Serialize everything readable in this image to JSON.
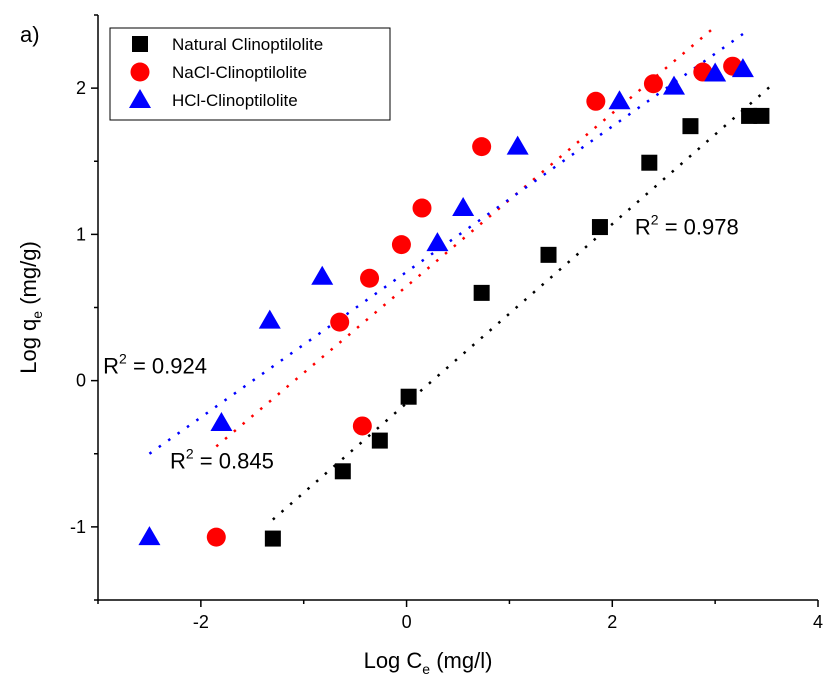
{
  "chart_data": {
    "type": "scatter",
    "panel_label": "a)",
    "xlabel": {
      "main": "Log C",
      "sub": "e",
      "unit": " (mg/l)"
    },
    "ylabel": {
      "main": "Log q",
      "sub": "e",
      "unit": " (mg/g)"
    },
    "xlim": [
      -3,
      4
    ],
    "ylim": [
      -1.5,
      2.5
    ],
    "xticks": [
      -2,
      0,
      2,
      4
    ],
    "yticks": [
      -1,
      0,
      1,
      2
    ],
    "xtick_labels": [
      "-2",
      "0",
      "2",
      "4"
    ],
    "ytick_labels": [
      "-1",
      "0",
      "1",
      "2"
    ],
    "legend_position": "top-left",
    "grid": false,
    "series": [
      {
        "name": "Natural Clinoptilolite",
        "marker": "square",
        "color": "#000000",
        "x": [
          -1.3,
          -0.62,
          -0.26,
          0.02,
          0.73,
          1.38,
          1.88,
          2.36,
          2.76,
          3.33,
          3.45
        ],
        "y": [
          -1.08,
          -0.62,
          -0.41,
          -0.11,
          0.6,
          0.86,
          1.05,
          1.49,
          1.74,
          1.81,
          1.81
        ],
        "fit": {
          "x": [
            -1.3,
            3.55
          ],
          "y": [
            -0.95,
            2.02
          ]
        }
      },
      {
        "name": "NaCl-Clinoptilolite",
        "marker": "circle",
        "color": "#ff0000",
        "x": [
          -1.85,
          -0.43,
          -0.65,
          -0.36,
          -0.05,
          0.15,
          0.73,
          1.84,
          2.4,
          2.88,
          3.17
        ],
        "y": [
          -1.07,
          -0.31,
          0.4,
          0.7,
          0.93,
          1.18,
          1.6,
          1.91,
          2.03,
          2.11,
          2.15
        ],
        "fit": {
          "x": [
            -1.85,
            3.0
          ],
          "y": [
            -0.45,
            2.42
          ]
        }
      },
      {
        "name": "HCl-Clinoptilolite",
        "marker": "triangle",
        "color": "#0000ff",
        "x": [
          -2.5,
          -1.8,
          -1.33,
          -0.82,
          0.3,
          0.55,
          1.08,
          2.07,
          2.6,
          3.0,
          3.27
        ],
        "y": [
          -1.07,
          -0.29,
          0.41,
          0.71,
          0.94,
          1.18,
          1.6,
          1.91,
          2.01,
          2.1,
          2.13
        ],
        "fit": {
          "x": [
            -2.5,
            3.27
          ],
          "y": [
            -0.5,
            2.37
          ]
        }
      }
    ],
    "annotations": [
      {
        "main": "R",
        "sup": "2",
        "rest": " = 0.978",
        "x": 2.22,
        "y": 1.0
      },
      {
        "main": "R",
        "sup": "2",
        "rest": " = 0.924",
        "x": -2.95,
        "y": 0.05
      },
      {
        "main": "R",
        "sup": "2",
        "rest": " = 0.845",
        "x": -2.3,
        "y": -0.6
      }
    ]
  }
}
